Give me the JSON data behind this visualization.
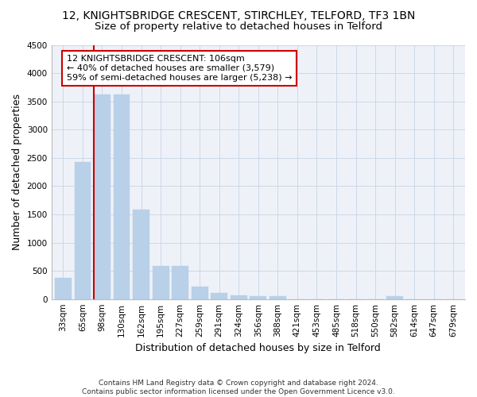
{
  "title": "12, KNIGHTSBRIDGE CRESCENT, STIRCHLEY, TELFORD, TF3 1BN",
  "subtitle": "Size of property relative to detached houses in Telford",
  "xlabel": "Distribution of detached houses by size in Telford",
  "ylabel": "Number of detached properties",
  "categories": [
    "33sqm",
    "65sqm",
    "98sqm",
    "130sqm",
    "162sqm",
    "195sqm",
    "227sqm",
    "259sqm",
    "291sqm",
    "324sqm",
    "356sqm",
    "388sqm",
    "421sqm",
    "453sqm",
    "485sqm",
    "518sqm",
    "550sqm",
    "582sqm",
    "614sqm",
    "647sqm",
    "679sqm"
  ],
  "values": [
    380,
    2420,
    3620,
    3620,
    1590,
    590,
    590,
    220,
    110,
    60,
    50,
    50,
    0,
    0,
    0,
    0,
    0,
    50,
    0,
    0,
    0
  ],
  "bar_color": "#b8d0e8",
  "bar_edge_color": "#b8d0e8",
  "vline_x_index": 2,
  "vline_color": "#cc0000",
  "annotation_line1": "12 KNIGHTSBRIDGE CRESCENT: 106sqm",
  "annotation_line2": "← 40% of detached houses are smaller (3,579)",
  "annotation_line3": "59% of semi-detached houses are larger (5,238) →",
  "annotation_box_color": "#ffffff",
  "annotation_box_edge": "#cc0000",
  "ylim": [
    0,
    4500
  ],
  "yticks": [
    0,
    500,
    1000,
    1500,
    2000,
    2500,
    3000,
    3500,
    4000,
    4500
  ],
  "grid_color": "#ccd8e8",
  "bg_color": "#eef2f8",
  "footer": "Contains HM Land Registry data © Crown copyright and database right 2024.\nContains public sector information licensed under the Open Government Licence v3.0.",
  "title_fontsize": 10,
  "subtitle_fontsize": 9.5,
  "xlabel_fontsize": 9,
  "ylabel_fontsize": 9,
  "tick_fontsize": 7.5,
  "footer_fontsize": 6.5,
  "annotation_fontsize": 8
}
